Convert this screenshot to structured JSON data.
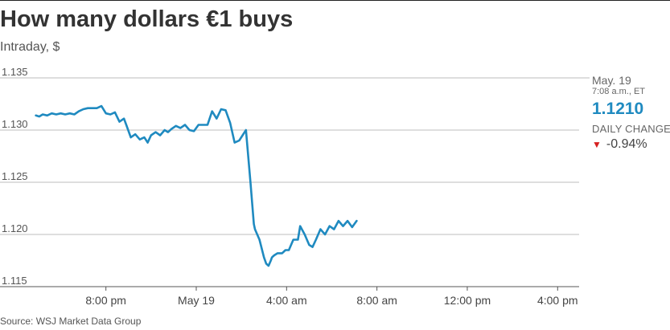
{
  "title": "How many dollars €1 buys",
  "subtitle": "Intraday, $",
  "source": "Source: WSJ Market Data Group",
  "sidebar": {
    "date": "May. 19",
    "time": "7:08 a.m., ET",
    "price": "1.1210",
    "change_label": "DAILY CHANGE",
    "change_value": "-0.94%"
  },
  "colors": {
    "line": "#1f8ac0",
    "grid": "#bdbdbd",
    "down": "#d62020"
  },
  "chart_data": {
    "type": "line",
    "title": "How many dollars €1 buys",
    "subtitle": "Intraday, $",
    "xlabel": "",
    "ylabel": "",
    "x_tick_labels": [
      "8:00 pm",
      "May 19",
      "4:00 am",
      "8:00 am",
      "12:00 pm",
      "4:00 pm"
    ],
    "x_tick_hours": [
      -4,
      0,
      4,
      8,
      12,
      16
    ],
    "xlim_hours": [
      -7.5,
      17
    ],
    "y_ticks": [
      1.115,
      1.12,
      1.125,
      1.13,
      1.135
    ],
    "y_tick_labels": [
      "1.115",
      "1.120",
      "1.125",
      "1.130",
      "1.135"
    ],
    "ylim": [
      1.115,
      1.135
    ],
    "grid": true,
    "series": [
      {
        "name": "",
        "x_hours": [
          -7.1,
          -6.95,
          -6.8,
          -6.6,
          -6.4,
          -6.2,
          -6.0,
          -5.8,
          -5.6,
          -5.4,
          -5.2,
          -5.0,
          -4.8,
          -4.6,
          -4.4,
          -4.2,
          -4.0,
          -3.8,
          -3.6,
          -3.4,
          -3.2,
          -3.1,
          -2.9,
          -2.7,
          -2.5,
          -2.3,
          -2.15,
          -2.0,
          -1.8,
          -1.6,
          -1.4,
          -1.25,
          -1.1,
          -0.9,
          -0.7,
          -0.5,
          -0.3,
          -0.1,
          0.1,
          0.3,
          0.5,
          0.7,
          0.9,
          1.1,
          1.3,
          1.5,
          1.7,
          1.9,
          2.05,
          2.2,
          2.4,
          2.55,
          2.6,
          2.8,
          3.0,
          3.1,
          3.2,
          3.3,
          3.35,
          3.45,
          3.6,
          3.8,
          3.95,
          4.1,
          4.3,
          4.5,
          4.6,
          4.8,
          5.0,
          5.15,
          5.3,
          5.5,
          5.7,
          5.9,
          6.1,
          6.3,
          6.5,
          6.7,
          6.9,
          7.1
        ],
        "y": [
          1.1314,
          1.1313,
          1.1315,
          1.1314,
          1.1316,
          1.1315,
          1.1316,
          1.1315,
          1.1316,
          1.1315,
          1.1318,
          1.132,
          1.1321,
          1.1321,
          1.1321,
          1.1323,
          1.1316,
          1.1315,
          1.1317,
          1.1308,
          1.1311,
          1.1305,
          1.1293,
          1.1296,
          1.1291,
          1.1293,
          1.1288,
          1.1295,
          1.1298,
          1.1295,
          1.13,
          1.1298,
          1.1301,
          1.1304,
          1.1302,
          1.1305,
          1.13,
          1.1299,
          1.1305,
          1.1305,
          1.1305,
          1.1318,
          1.1311,
          1.132,
          1.1319,
          1.1307,
          1.1288,
          1.129,
          1.1295,
          1.13,
          1.125,
          1.121,
          1.1205,
          1.1195,
          1.1178,
          1.1172,
          1.117,
          1.1175,
          1.1178,
          1.118,
          1.1182,
          1.1182,
          1.1185,
          1.1185,
          1.1195,
          1.1195,
          1.1208,
          1.12,
          1.119,
          1.1188,
          1.1195,
          1.1205,
          1.12,
          1.1208,
          1.1205,
          1.1213,
          1.1208,
          1.1213,
          1.1207,
          1.1213
        ]
      }
    ]
  }
}
